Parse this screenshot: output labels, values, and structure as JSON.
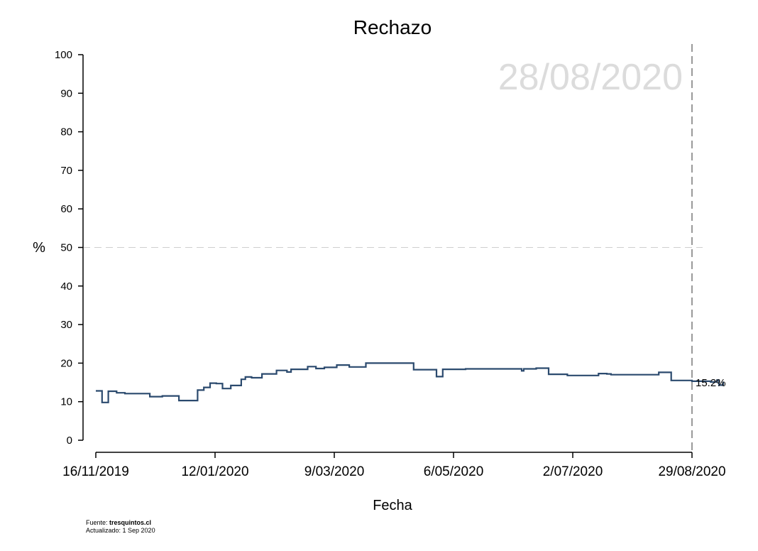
{
  "chart_data": {
    "type": "line",
    "title": "Rechazo",
    "xlabel": "Fecha",
    "ylabel": "%",
    "ylim": [
      0,
      100
    ],
    "yticks": [
      0,
      10,
      20,
      30,
      40,
      50,
      60,
      70,
      80,
      90,
      100
    ],
    "reference_y": 50,
    "x_tick_labels": [
      "16/11/2019",
      "12/01/2020",
      "9/03/2020",
      "6/05/2020",
      "2/07/2020",
      "29/08/2020"
    ],
    "date_watermark": "28/08/2020",
    "end_label": "15.2%",
    "line_color": "#2b4a6e",
    "series": [
      {
        "name": "Rechazo",
        "x_days": [
          0,
          3,
          6,
          10,
          14,
          26,
          32,
          40,
          48,
          49,
          52,
          55,
          58,
          61,
          65,
          70,
          72,
          75,
          80,
          87,
          92,
          94,
          102,
          106,
          110,
          116,
          122,
          130,
          153,
          164,
          167,
          178,
          205,
          206,
          212,
          218,
          227,
          242,
          246,
          248,
          250,
          257,
          271,
          277,
          287,
          296,
          299,
          300,
          302
        ],
        "values": [
          12.8,
          9.8,
          12.7,
          12.3,
          12.1,
          11.3,
          11.5,
          10.3,
          10.3,
          13.0,
          13.7,
          14.8,
          14.7,
          13.4,
          14.2,
          15.8,
          16.4,
          16.2,
          17.2,
          18.1,
          17.7,
          18.4,
          19.1,
          18.6,
          18.9,
          19.5,
          19.0,
          20.0,
          18.3,
          16.5,
          18.4,
          18.5,
          18.0,
          18.5,
          18.7,
          17.1,
          16.8,
          17.3,
          17.2,
          17.0,
          17.0,
          17.0,
          17.6,
          15.5,
          15.3,
          15.1,
          15.6,
          14.3,
          15.2
        ]
      }
    ]
  },
  "footer": {
    "source_prefix": "Fuente:",
    "source_name": "tresquintos.cl",
    "updated": "Actualizado: 1 Sep 2020"
  }
}
